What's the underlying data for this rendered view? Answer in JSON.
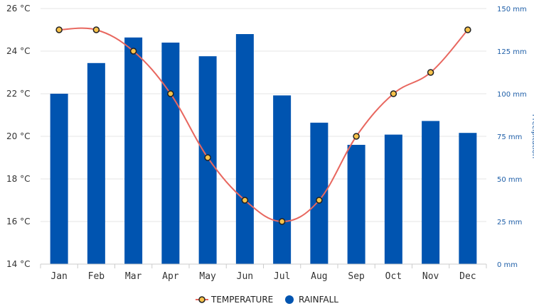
{
  "chart_data": {
    "type": "bar",
    "categories": [
      "Jan",
      "Feb",
      "Mar",
      "Apr",
      "May",
      "Jun",
      "Jul",
      "Aug",
      "Sep",
      "Oct",
      "Nov",
      "Dec"
    ],
    "series": [
      {
        "name": "RAINFALL",
        "type": "bar",
        "axis": "right",
        "color": "#0054b0",
        "values": [
          100,
          118,
          133,
          130,
          122,
          135,
          99,
          83,
          70,
          76,
          84,
          77
        ]
      },
      {
        "name": "TEMPERATURE",
        "type": "line",
        "axis": "left",
        "color": "#e8675f",
        "marker_fill": "#f7c24a",
        "values": [
          25,
          25,
          24,
          22,
          19,
          17,
          16,
          17,
          20,
          22,
          23,
          25
        ]
      }
    ],
    "y_left": {
      "min": 14,
      "max": 26,
      "step": 2,
      "unit": "°C",
      "ticks": [
        "14 °C",
        "16 °C",
        "18 °C",
        "20 °C",
        "22 °C",
        "24 °C",
        "26 °C"
      ]
    },
    "y_right": {
      "min": 0,
      "max": 150,
      "step": 25,
      "unit": "mm",
      "ticks": [
        "0 mm",
        "25 mm",
        "50 mm",
        "75 mm",
        "100 mm",
        "125 mm",
        "150 mm"
      ],
      "label": "Precipitation"
    },
    "grid": true,
    "legend": {
      "position": "bottom",
      "items": [
        "TEMPERATURE",
        "RAINFALL"
      ]
    }
  }
}
